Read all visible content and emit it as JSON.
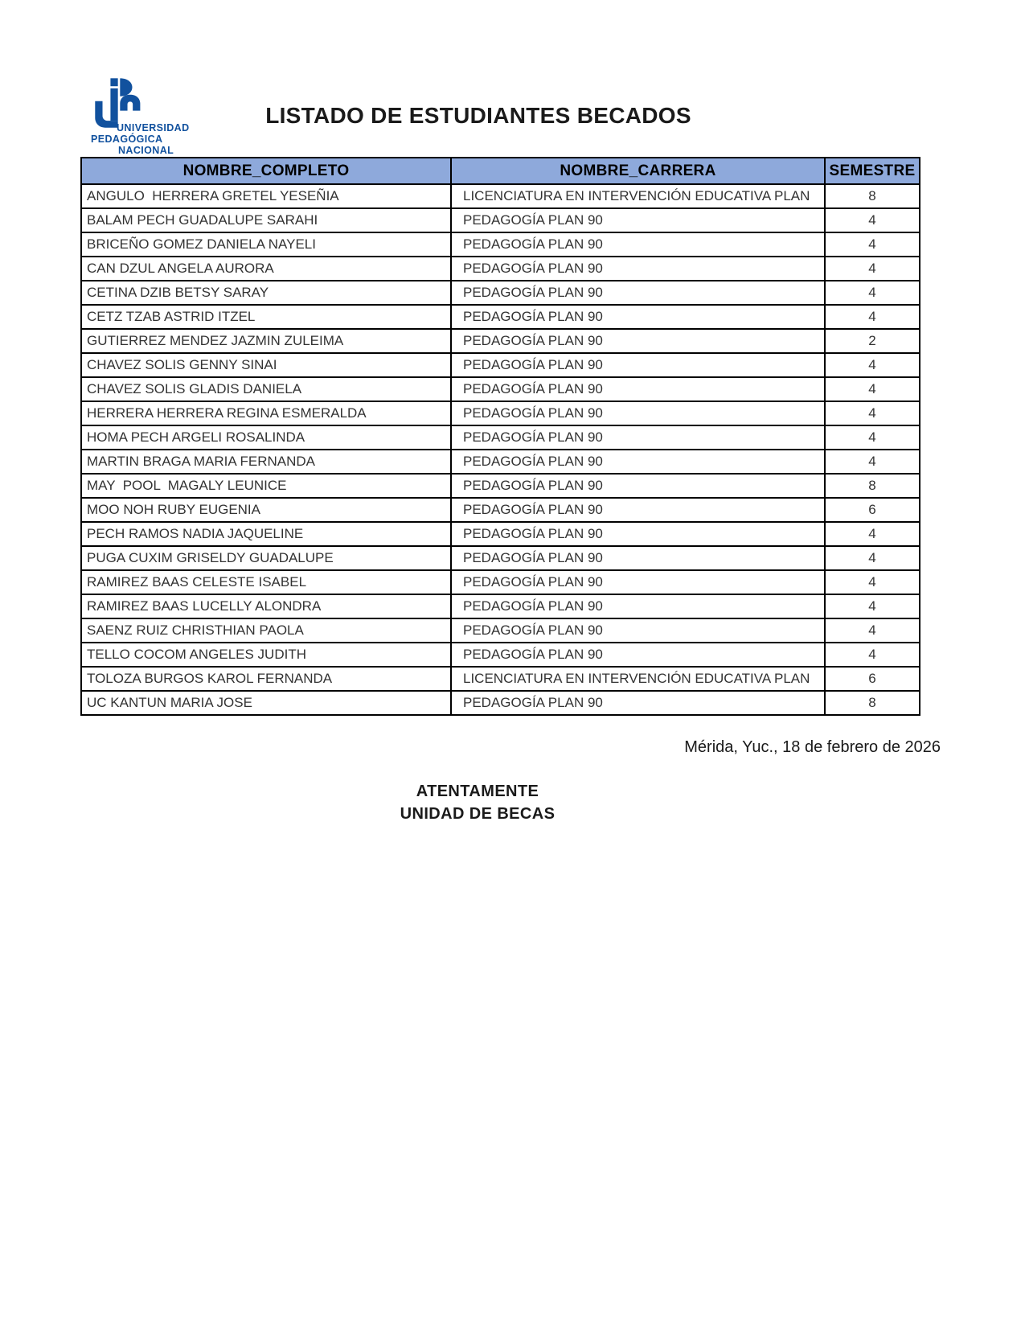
{
  "brand_color": "#11519E",
  "logo": {
    "name1": "UNIVERSIDAD",
    "name2": "PEDAGÓGICA",
    "name3": "NACIONAL"
  },
  "title": "LISTADO DE ESTUDIANTES BECADOS",
  "table": {
    "header_bg": "#8EA9DB",
    "columns": [
      "NOMBRE_COMPLETO",
      "NOMBRE_CARRERA",
      "SEMESTRE"
    ],
    "rows": [
      {
        "nombre": "ANGULO  HERRERA GRETEL YESEÑIA",
        "carrera": "LICENCIATURA EN INTERVENCIÓN EDUCATIVA PLAN",
        "semestre": "8"
      },
      {
        "nombre": "BALAM PECH GUADALUPE SARAHI",
        "carrera": "PEDAGOGÍA PLAN 90",
        "semestre": "4"
      },
      {
        "nombre": "BRICEÑO GOMEZ DANIELA NAYELI",
        "carrera": "PEDAGOGÍA PLAN 90",
        "semestre": "4"
      },
      {
        "nombre": "CAN DZUL ANGELA AURORA",
        "carrera": "PEDAGOGÍA PLAN 90",
        "semestre": "4"
      },
      {
        "nombre": "CETINA DZIB BETSY SARAY",
        "carrera": "PEDAGOGÍA PLAN 90",
        "semestre": "4"
      },
      {
        "nombre": "CETZ TZAB ASTRID ITZEL",
        "carrera": "PEDAGOGÍA PLAN 90",
        "semestre": "4"
      },
      {
        "nombre": "GUTIERREZ MENDEZ JAZMIN ZULEIMA",
        "carrera": "PEDAGOGÍA PLAN 90",
        "semestre": "2"
      },
      {
        "nombre": "CHAVEZ SOLIS GENNY SINAI",
        "carrera": "PEDAGOGÍA PLAN 90",
        "semestre": "4"
      },
      {
        "nombre": "CHAVEZ SOLIS GLADIS DANIELA",
        "carrera": "PEDAGOGÍA PLAN 90",
        "semestre": "4"
      },
      {
        "nombre": "HERRERA HERRERA REGINA ESMERALDA",
        "carrera": "PEDAGOGÍA PLAN 90",
        "semestre": "4"
      },
      {
        "nombre": "HOMA PECH ARGELI ROSALINDA",
        "carrera": "PEDAGOGÍA PLAN 90",
        "semestre": "4"
      },
      {
        "nombre": "MARTIN BRAGA MARIA FERNANDA",
        "carrera": "PEDAGOGÍA PLAN 90",
        "semestre": "4"
      },
      {
        "nombre": "MAY  POOL  MAGALY LEUNICE",
        "carrera": "PEDAGOGÍA PLAN 90",
        "semestre": "8"
      },
      {
        "nombre": "MOO NOH RUBY EUGENIA",
        "carrera": "PEDAGOGÍA PLAN 90",
        "semestre": "6"
      },
      {
        "nombre": "PECH RAMOS NADIA JAQUELINE",
        "carrera": "PEDAGOGÍA PLAN 90",
        "semestre": "4"
      },
      {
        "nombre": "PUGA CUXIM GRISELDY GUADALUPE",
        "carrera": "PEDAGOGÍA PLAN 90",
        "semestre": "4"
      },
      {
        "nombre": "RAMIREZ BAAS CELESTE ISABEL",
        "carrera": "PEDAGOGÍA PLAN 90",
        "semestre": "4"
      },
      {
        "nombre": "RAMIREZ BAAS LUCELLY ALONDRA",
        "carrera": "PEDAGOGÍA PLAN 90",
        "semestre": "4"
      },
      {
        "nombre": "SAENZ RUIZ CHRISTHIAN PAOLA",
        "carrera": "PEDAGOGÍA PLAN 90",
        "semestre": "4"
      },
      {
        "nombre": "TELLO COCOM ANGELES JUDITH",
        "carrera": "PEDAGOGÍA PLAN 90",
        "semestre": "4"
      },
      {
        "nombre": "TOLOZA BURGOS KAROL FERNANDA",
        "carrera": "LICENCIATURA EN INTERVENCIÓN EDUCATIVA PLAN",
        "semestre": "6"
      },
      {
        "nombre": "UC KANTUN MARIA JOSE",
        "carrera": "PEDAGOGÍA PLAN 90",
        "semestre": "8"
      }
    ]
  },
  "footer": {
    "date_line": "Mérida, Yuc., 18 de febrero de 2026",
    "closing_line1": "ATENTAMENTE",
    "closing_line2": "UNIDAD DE BECAS"
  }
}
